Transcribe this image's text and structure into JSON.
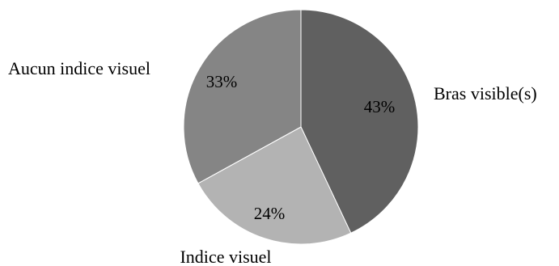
{
  "chart_data": {
    "type": "pie",
    "categories": [
      "Bras visible(s)",
      "Indice visuel",
      "Aucun indice visuel"
    ],
    "values": [
      43,
      24,
      33
    ],
    "value_labels": [
      "43%",
      "24%",
      "33%"
    ],
    "colors": [
      "#606060",
      "#b3b3b3",
      "#858585"
    ],
    "start_angle_deg": 0,
    "direction": "clockwise",
    "legend": "none",
    "title": ""
  }
}
